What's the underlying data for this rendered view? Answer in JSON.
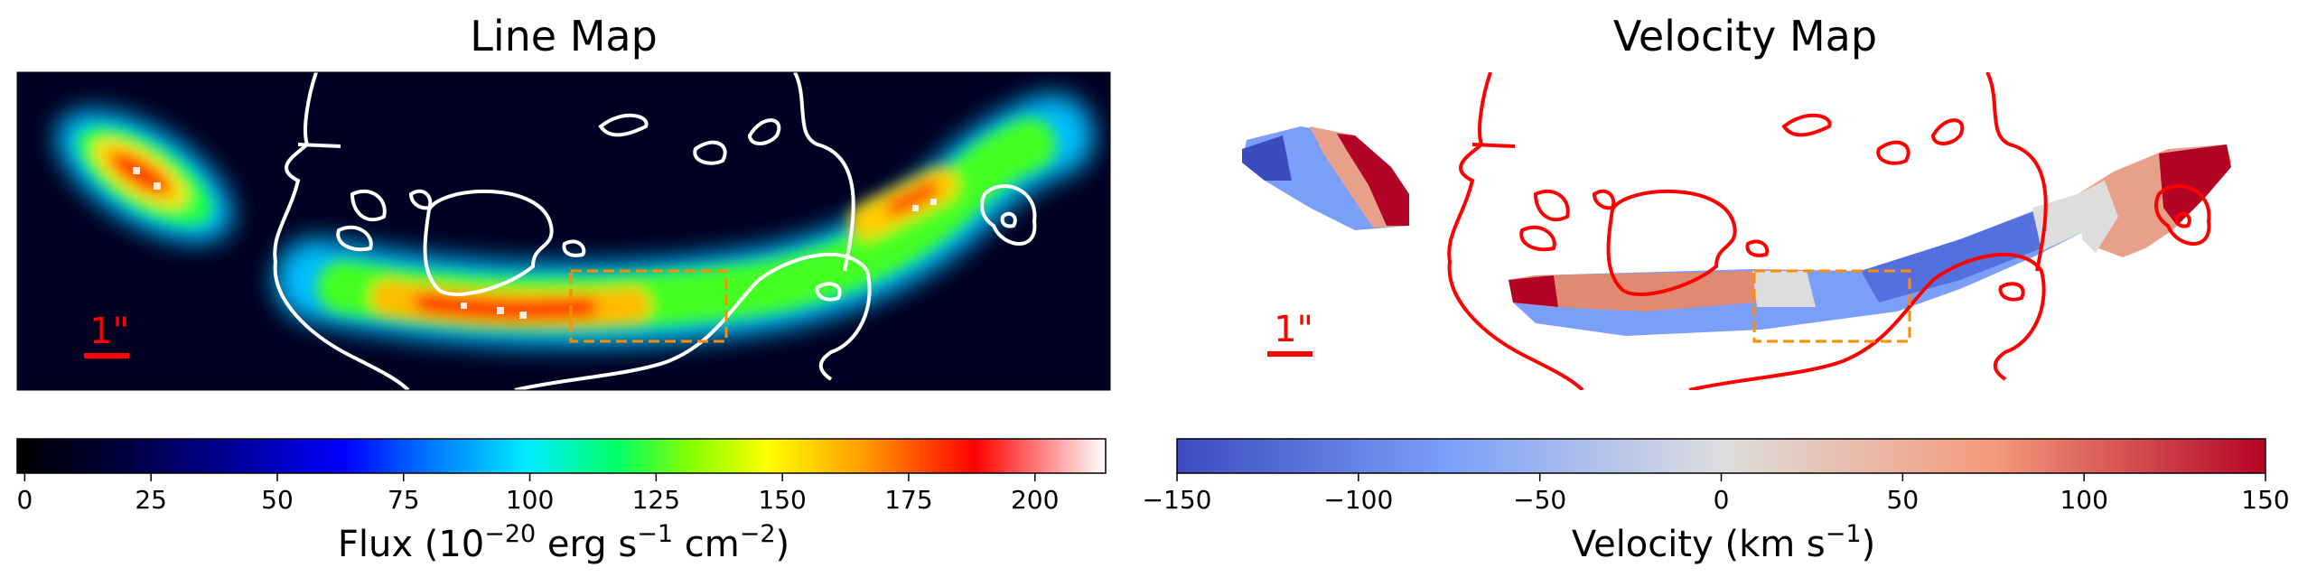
{
  "figure": {
    "panels": [
      {
        "id": "line",
        "title": "Line Map",
        "scale_label": "1\"",
        "cmap": "jet",
        "colorbar": {
          "ticks": [
            0,
            25,
            50,
            75,
            100,
            125,
            150,
            175,
            200
          ],
          "tick_labels": [
            "0",
            "25",
            "50",
            "75",
            "100",
            "125",
            "150",
            "175",
            "200"
          ],
          "range": [
            -1.5,
            214
          ],
          "label_main": "Flux (10",
          "label_sup1": "−20",
          "label_mid": " erg s",
          "label_sup2": "−1",
          "label_mid2": " cm",
          "label_sup3": "−2",
          "label_end": ")"
        }
      },
      {
        "id": "velocity",
        "title": "Velocity Map",
        "scale_label": "1\"",
        "cmap": "coolwarm",
        "colorbar": {
          "ticks": [
            -150,
            -100,
            -50,
            0,
            50,
            100,
            150
          ],
          "tick_labels": [
            "−150",
            "−100",
            "−50",
            "0",
            "50",
            "100",
            "150"
          ],
          "range": [
            -150,
            150
          ],
          "label_main": "Velocity (km s",
          "label_sup1": "−1",
          "label_end": ")"
        }
      }
    ],
    "colors": {
      "contour_line_map": "#ffffff",
      "contour_velocity_map": "#ff0000",
      "scale_bar": "#ff0000",
      "box": "#ff8c00",
      "background_line_map": "#000033"
    }
  }
}
